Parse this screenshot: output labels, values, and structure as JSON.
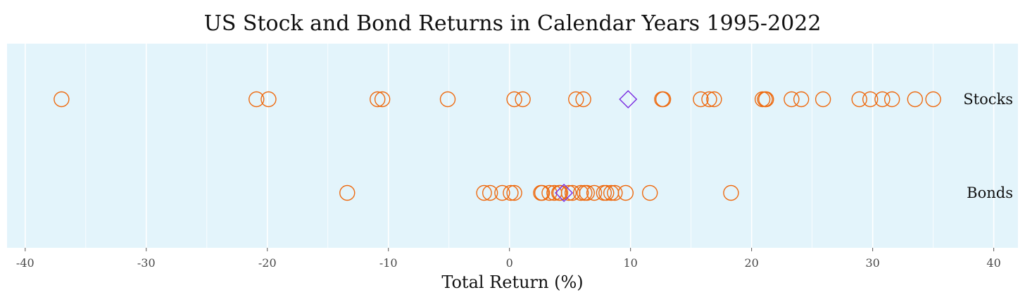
{
  "chart_data": {
    "type": "scatter",
    "title": "US Stock and Bond Returns in Calendar Years 1995-2022",
    "xlabel": "Total Return (%)",
    "ylabel": "",
    "xlim": [
      -41.5,
      42
    ],
    "x_ticks": [
      -40,
      -30,
      -20,
      -10,
      0,
      10,
      20,
      30,
      40
    ],
    "x_minor_ticks": [
      -35,
      -25,
      -15,
      -5,
      5,
      15,
      25,
      35
    ],
    "grid": true,
    "legend": "none",
    "categories": [
      "Stocks",
      "Bonds"
    ],
    "series": [
      {
        "name": "Stocks",
        "marker": "circle",
        "values": [
          -37.0,
          -20.9,
          -19.9,
          -10.9,
          -10.5,
          -5.1,
          0.4,
          1.1,
          5.5,
          6.1,
          12.6,
          12.7,
          15.8,
          16.5,
          16.9,
          20.9,
          21.1,
          21.2,
          23.3,
          24.1,
          25.9,
          28.9,
          29.8,
          30.8,
          31.6,
          33.5,
          35.0
        ],
        "mean": 9.8
      },
      {
        "name": "Bonds",
        "marker": "circle",
        "values": [
          -13.4,
          -2.1,
          -1.6,
          -0.6,
          0.1,
          0.4,
          2.6,
          2.7,
          3.3,
          3.7,
          4.1,
          4.2,
          4.9,
          5.2,
          5.9,
          6.2,
          6.4,
          7.0,
          7.8,
          8.0,
          8.4,
          8.7,
          9.6,
          11.6,
          18.3
        ],
        "mean": 4.5
      }
    ],
    "colors": {
      "panel_background": "#e3f4fb",
      "grid_line": "#ffffff",
      "point_stroke": "#ee6a10",
      "mean_marker": "#7a2be0"
    }
  }
}
